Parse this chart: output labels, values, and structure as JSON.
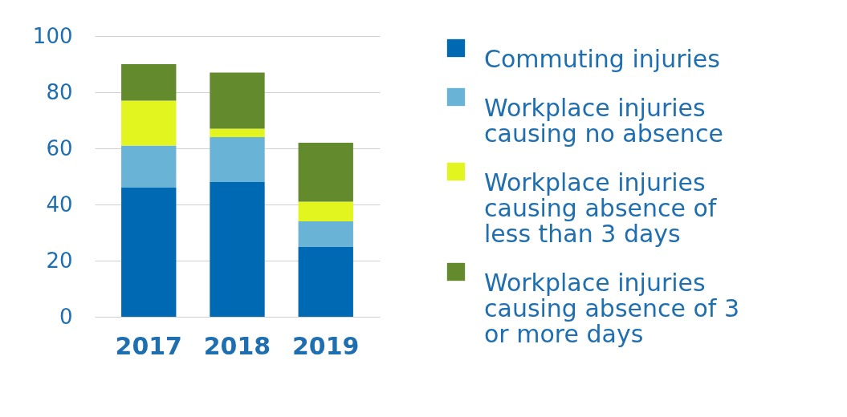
{
  "chart_data": {
    "type": "bar",
    "stacked": true,
    "categories": [
      "2017",
      "2018",
      "2019"
    ],
    "series": [
      {
        "name": "Commuting injuries",
        "color": "#0069b4",
        "values": [
          46,
          48,
          25
        ]
      },
      {
        "name": "Workplace injuries causing no absence",
        "color": "#69b3d6",
        "values": [
          15,
          16,
          9
        ]
      },
      {
        "name": "Workplace injuries causing absence of less than 3 days",
        "color": "#e2f51e",
        "values": [
          16,
          3,
          7
        ]
      },
      {
        "name": "Workplace injuries causing absence of 3 or more days",
        "color": "#648a2e",
        "values": [
          13,
          20,
          21
        ]
      }
    ],
    "ylim": [
      0,
      100
    ],
    "yticks": [
      0,
      20,
      40,
      60,
      80,
      100
    ],
    "grid": "y",
    "legend": "right"
  }
}
